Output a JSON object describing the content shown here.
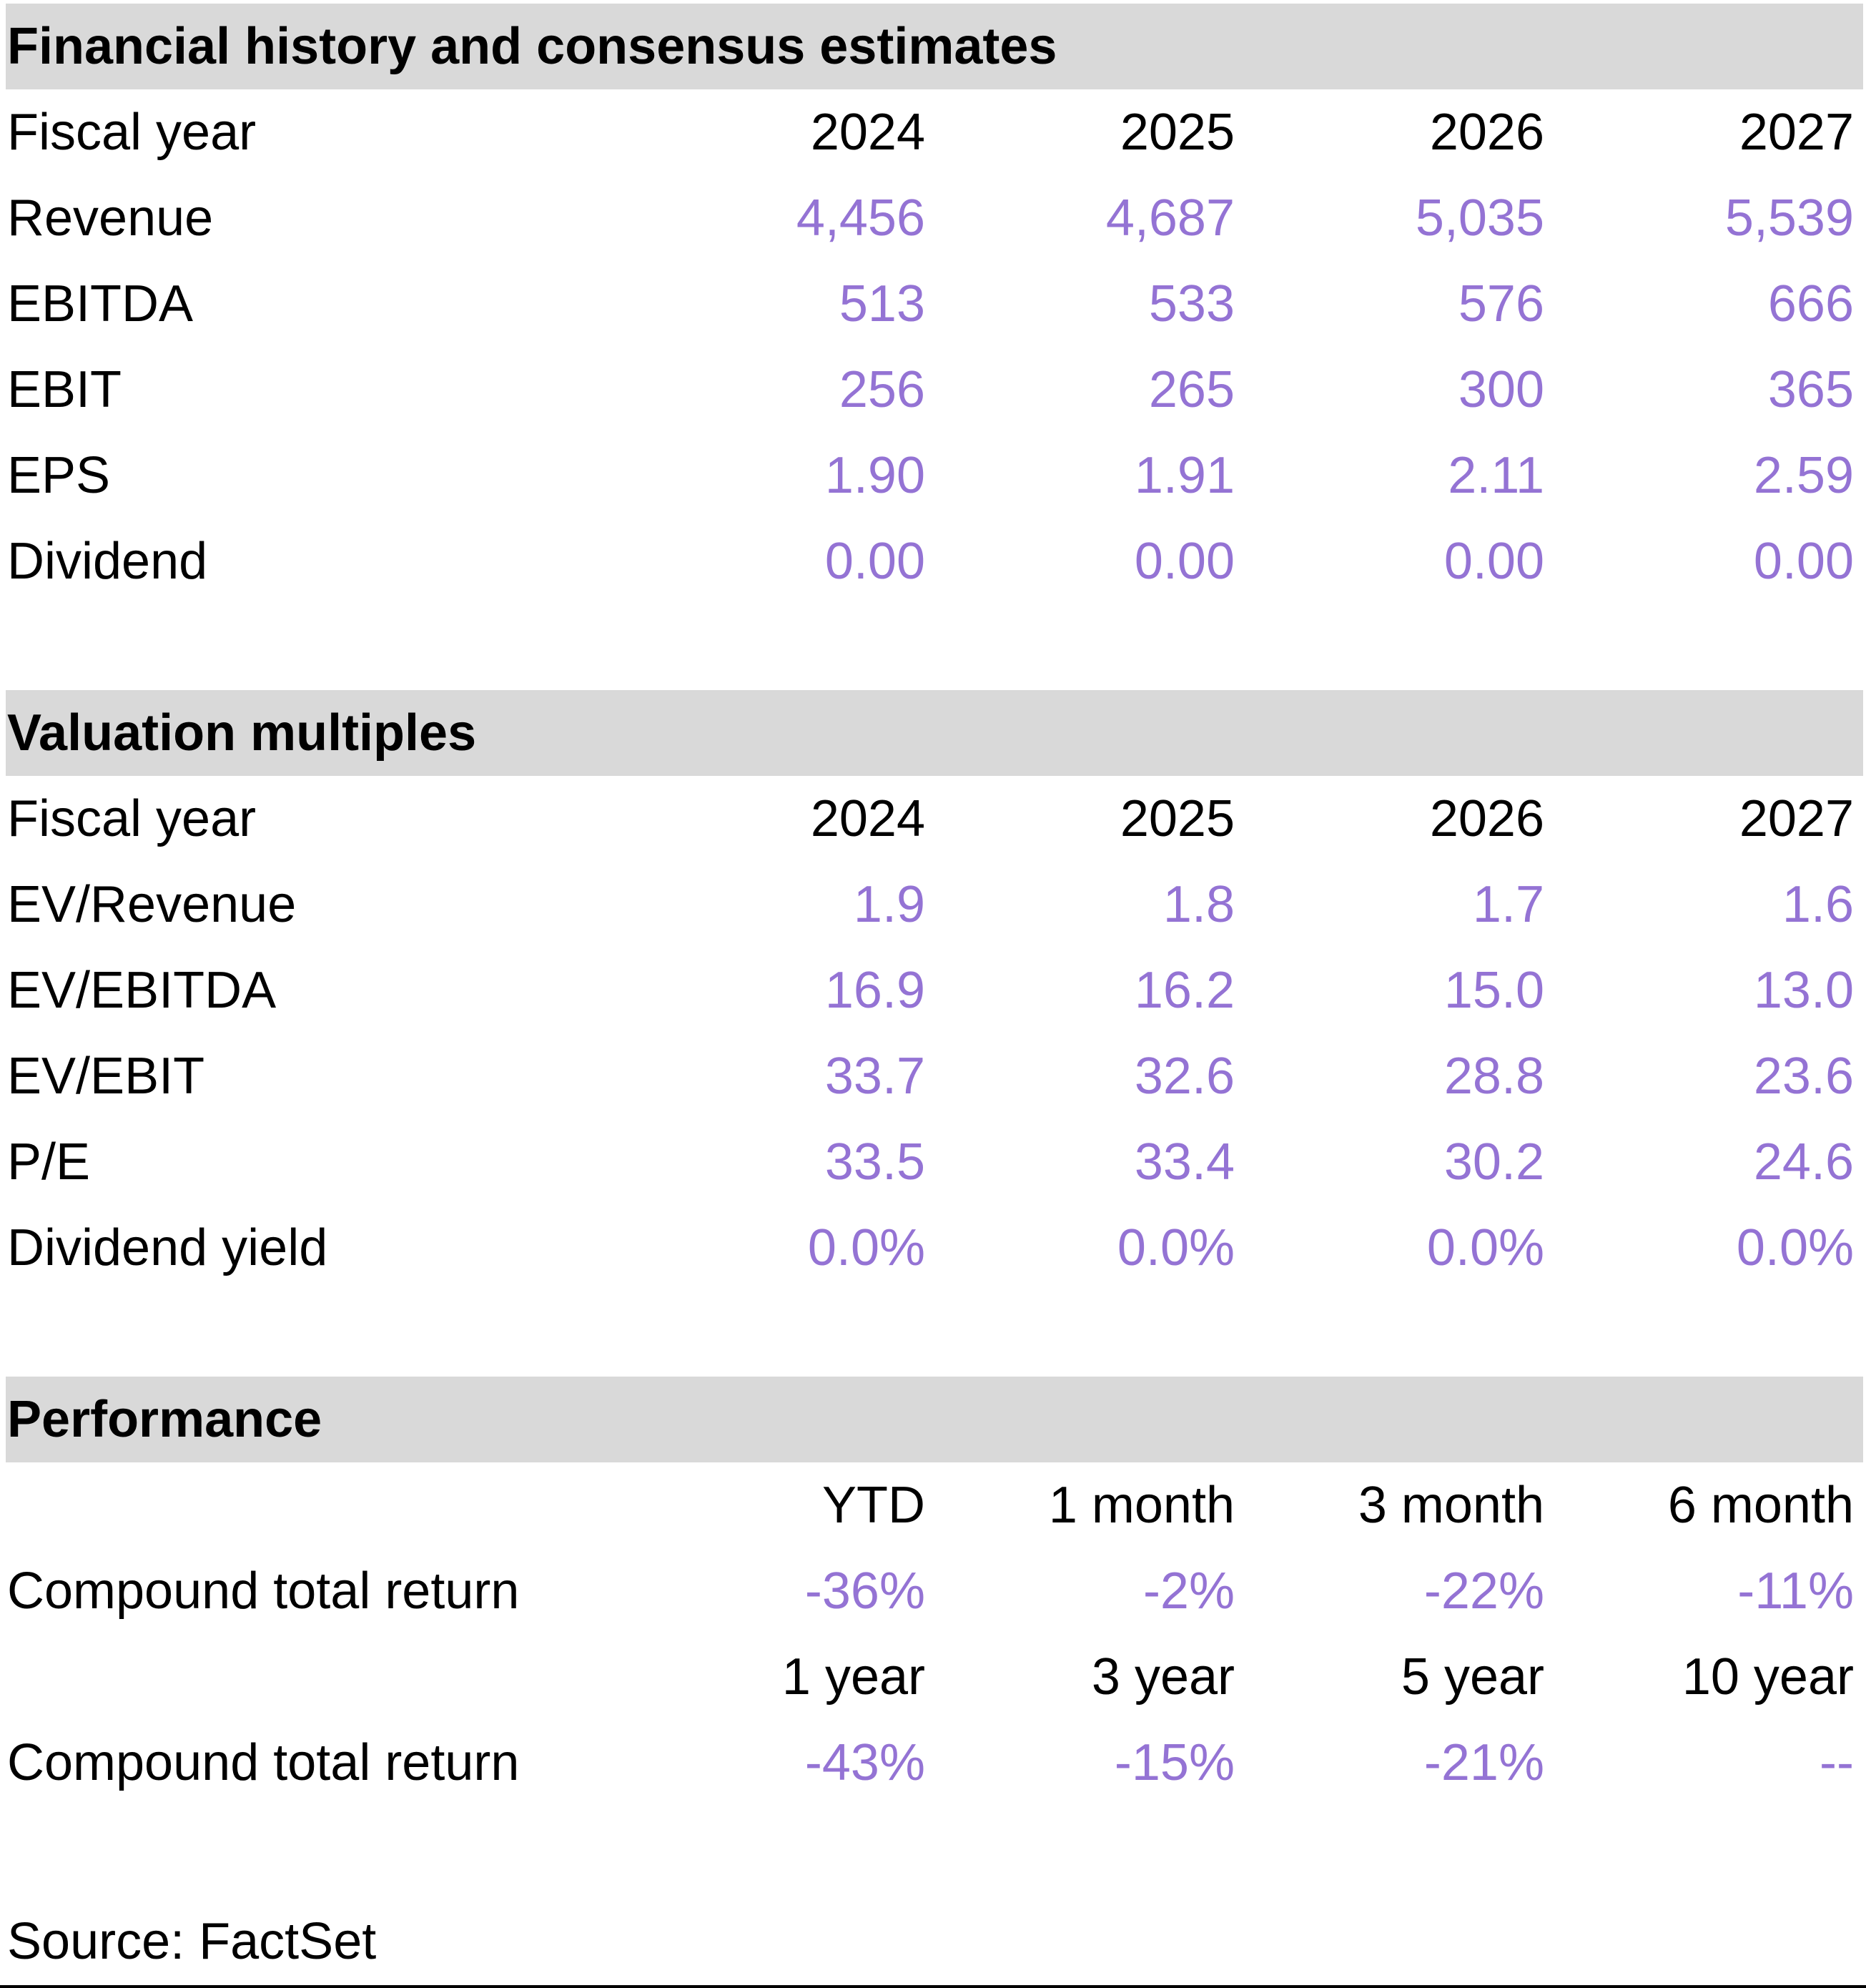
{
  "colors": {
    "accent_purple": "#9473D4",
    "section_header_bg": "#D9D9D9",
    "text": "#000000"
  },
  "sections": [
    {
      "title": "Financial history and consensus estimates",
      "header_row": {
        "label": "Fiscal year",
        "cols": [
          "2024",
          "2025",
          "2026",
          "2027"
        ]
      },
      "rows": [
        {
          "label": "Revenue",
          "values": [
            "4,456",
            "4,687",
            "5,035",
            "5,539"
          ]
        },
        {
          "label": "EBITDA",
          "values": [
            "513",
            "533",
            "576",
            "666"
          ]
        },
        {
          "label": "EBIT",
          "values": [
            "256",
            "265",
            "300",
            "365"
          ]
        },
        {
          "label": "EPS",
          "values": [
            "1.90",
            "1.91",
            "2.11",
            "2.59"
          ]
        },
        {
          "label": "Dividend",
          "values": [
            "0.00",
            "0.00",
            "0.00",
            "0.00"
          ]
        }
      ]
    },
    {
      "title": "Valuation multiples",
      "header_row": {
        "label": "Fiscal year",
        "cols": [
          "2024",
          "2025",
          "2026",
          "2027"
        ]
      },
      "rows": [
        {
          "label": "EV/Revenue",
          "values": [
            "1.9",
            "1.8",
            "1.7",
            "1.6"
          ]
        },
        {
          "label": "EV/EBITDA",
          "values": [
            "16.9",
            "16.2",
            "15.0",
            "13.0"
          ]
        },
        {
          "label": "EV/EBIT",
          "values": [
            "33.7",
            "32.6",
            "28.8",
            "23.6"
          ]
        },
        {
          "label": "P/E",
          "values": [
            "33.5",
            "33.4",
            "30.2",
            "24.6"
          ]
        },
        {
          "label": "Dividend yield",
          "values": [
            "0.0%",
            "0.0%",
            "0.0%",
            "0.0%"
          ]
        }
      ]
    },
    {
      "title": "Performance",
      "groups": [
        {
          "header_row": {
            "label": "",
            "cols": [
              "YTD",
              "1 month",
              "3 month",
              "6 month"
            ]
          },
          "row": {
            "label": "Compound total return",
            "values": [
              "-36%",
              "-2%",
              "-22%",
              "-11%"
            ]
          }
        },
        {
          "header_row": {
            "label": "",
            "cols": [
              "1 year",
              "3 year",
              "5 year",
              "10 year"
            ]
          },
          "row": {
            "label": "Compound total return",
            "values": [
              "-43%",
              "-15%",
              "-21%",
              "--"
            ]
          }
        }
      ]
    }
  ],
  "footer": {
    "source": "Source: FactSet"
  }
}
